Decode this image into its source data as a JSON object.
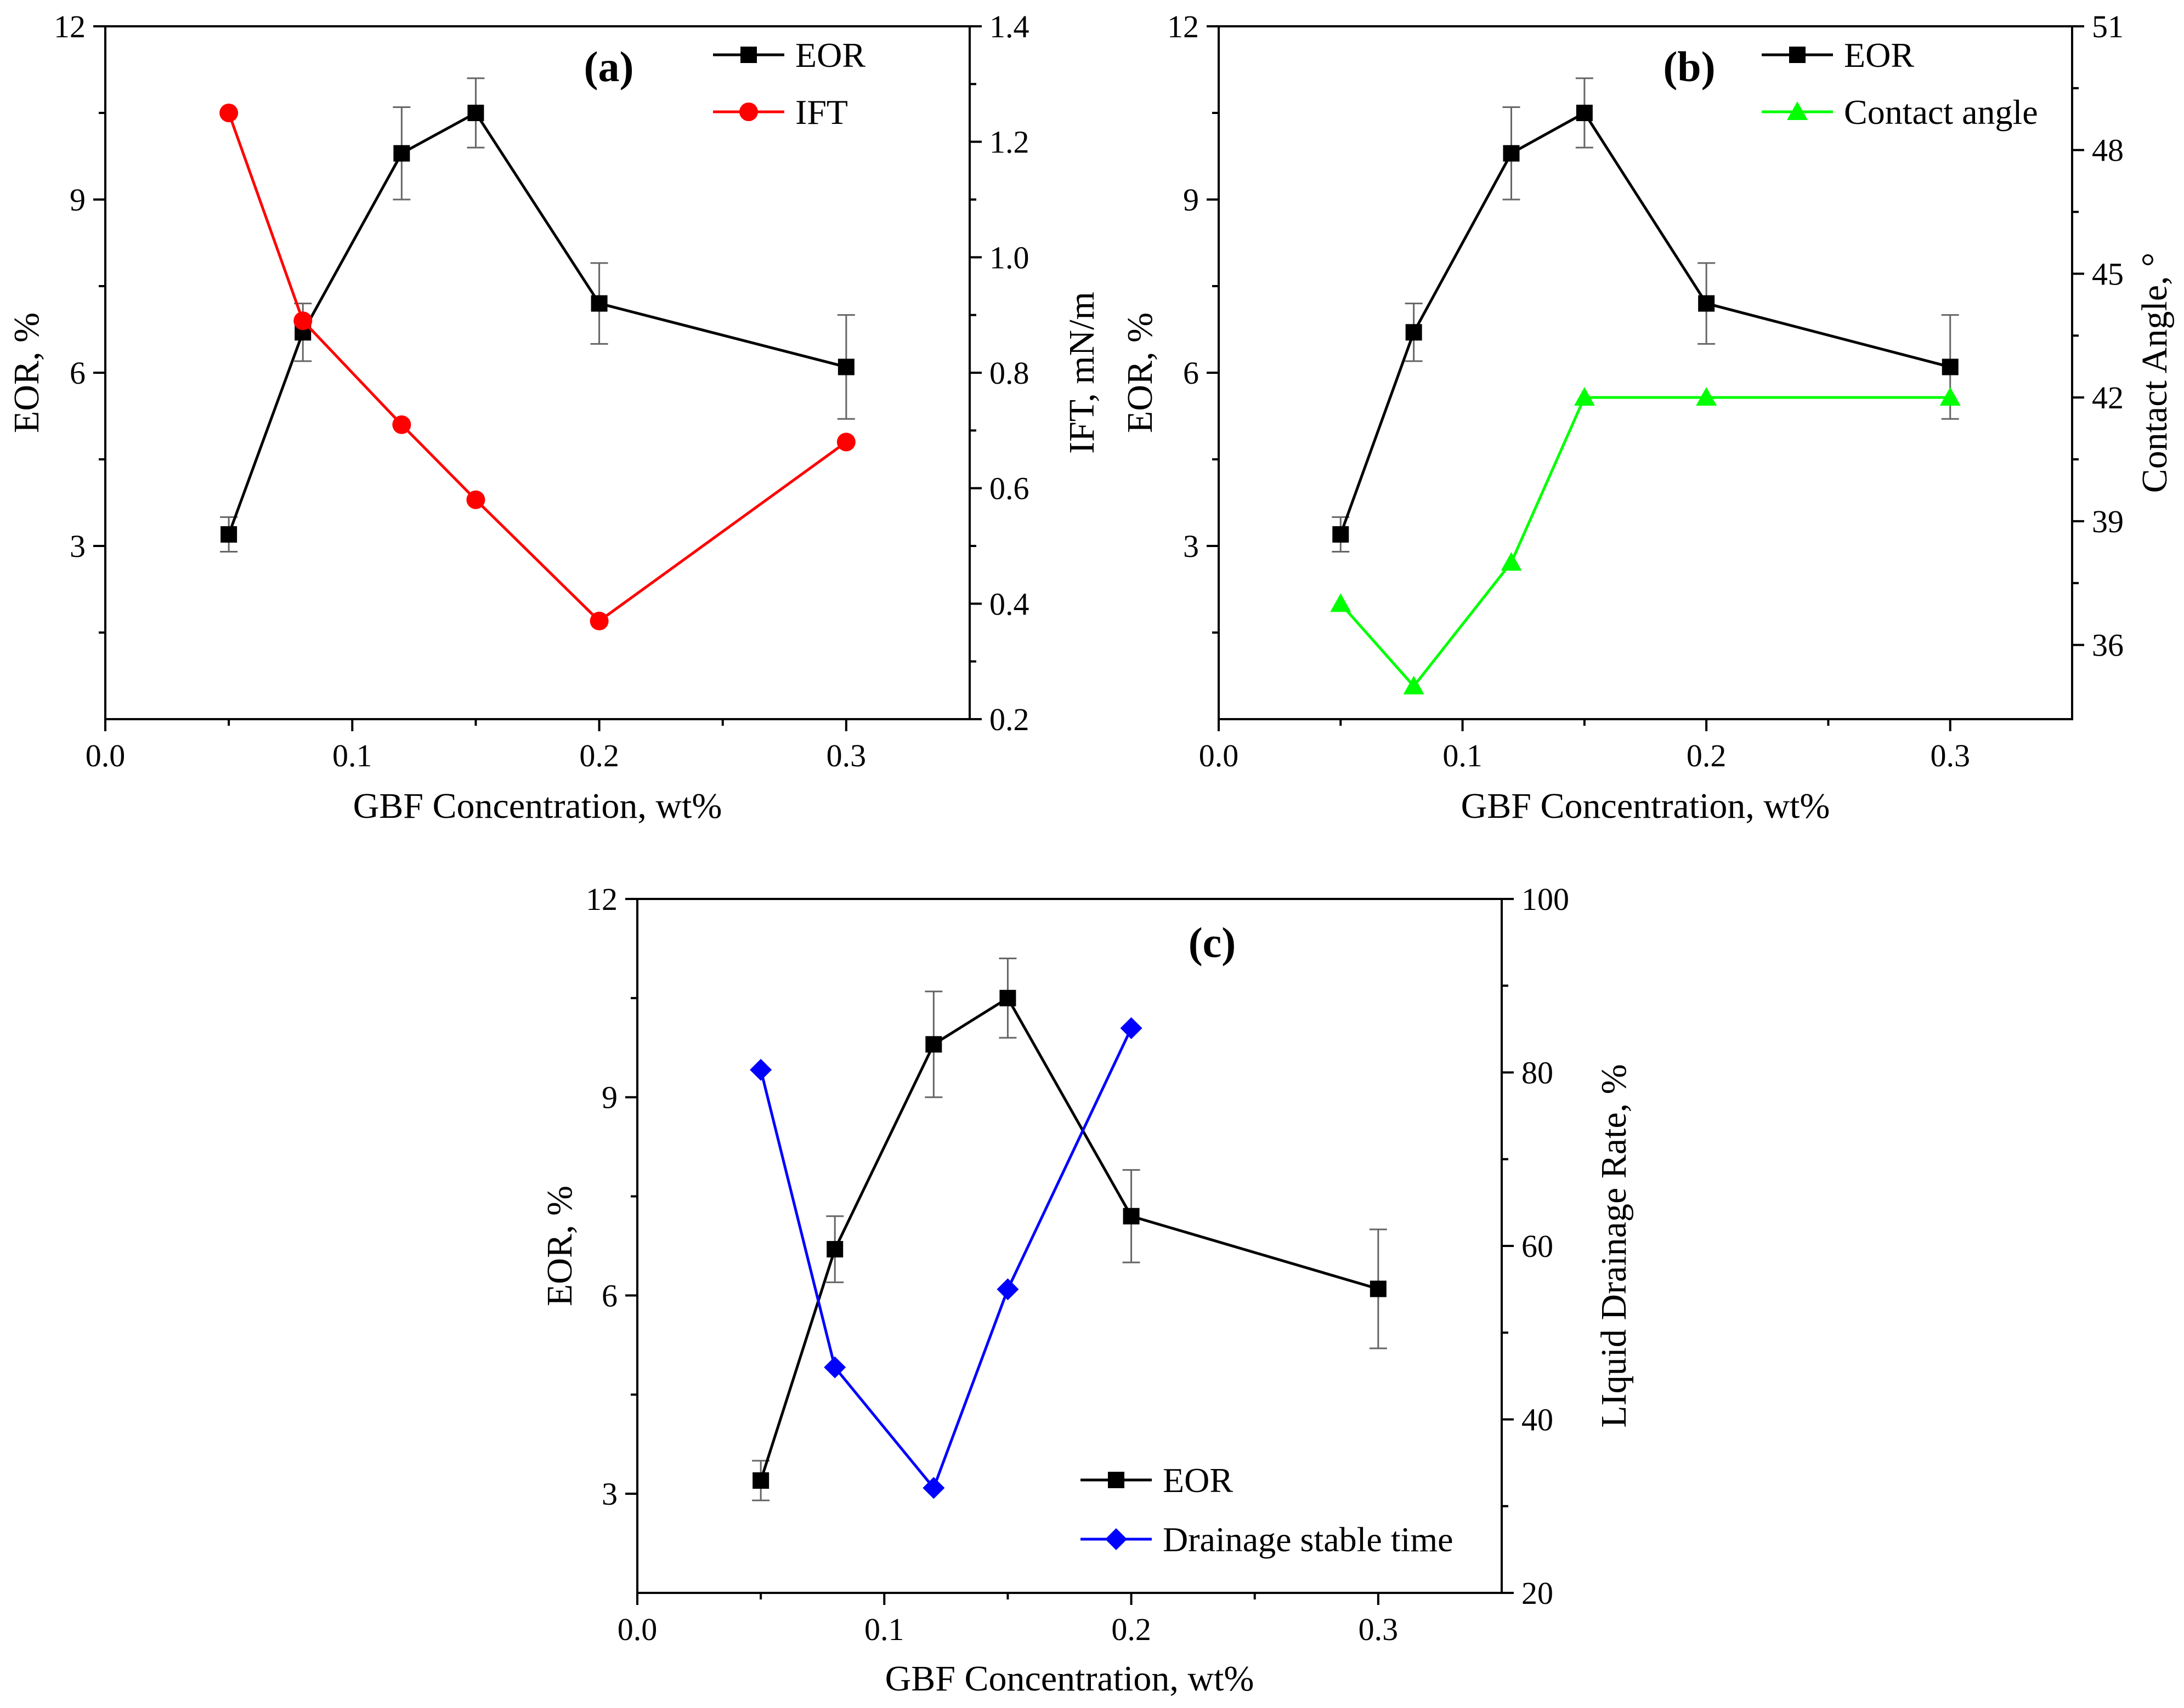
{
  "figure": {
    "colors": {
      "eor": "#000000",
      "ift": "#ff0000",
      "contact_angle": "#00ff00",
      "drainage": "#0000ff"
    }
  },
  "chart_data": [
    {
      "type": "line",
      "panel_label": "(a)",
      "xlabel": "GBF Concentration, wt%",
      "ylabel": "EOR, %",
      "y2label": "IFT, mN/m",
      "xlim": [
        0.0,
        0.35
      ],
      "ylim": [
        0,
        12
      ],
      "y2lim": [
        0.2,
        1.4
      ],
      "xticks": [
        0.0,
        0.1,
        0.2,
        0.3
      ],
      "xtick_labels": [
        "0.0",
        "0.1",
        "0.2",
        "0.3"
      ],
      "yticks": [
        3,
        6,
        9,
        12
      ],
      "ytick_labels": [
        "3",
        "6",
        "9",
        "12"
      ],
      "y2ticks": [
        0.2,
        0.4,
        0.6,
        0.8,
        1.0,
        1.2,
        1.4
      ],
      "y2tick_labels": [
        "0.2",
        "0.4",
        "0.6",
        "0.8",
        "1.0",
        "1.2",
        "1.4"
      ],
      "legend_position": "top-right",
      "series": [
        {
          "name": "EOR",
          "axis": "left",
          "marker": "square",
          "color": "#000000",
          "x": [
            0.05,
            0.08,
            0.12,
            0.15,
            0.2,
            0.3
          ],
          "values": [
            3.2,
            6.7,
            9.8,
            10.5,
            7.2,
            6.1
          ],
          "errors": [
            0.3,
            0.5,
            0.8,
            0.6,
            0.7,
            0.9
          ]
        },
        {
          "name": "IFT",
          "axis": "right",
          "marker": "circle",
          "color": "#ff0000",
          "x": [
            0.05,
            0.08,
            0.12,
            0.15,
            0.2,
            0.3
          ],
          "values": [
            1.25,
            0.89,
            0.71,
            0.58,
            0.37,
            0.68
          ]
        }
      ]
    },
    {
      "type": "line",
      "panel_label": "(b)",
      "xlabel": "GBF Concentration, wt%",
      "ylabel": "EOR, %",
      "y2label": "Contact Angle, °",
      "xlim": [
        0.0,
        0.35
      ],
      "ylim": [
        0,
        12
      ],
      "y2lim": [
        34.2,
        51
      ],
      "xticks": [
        0.0,
        0.1,
        0.2,
        0.3
      ],
      "xtick_labels": [
        "0.0",
        "0.1",
        "0.2",
        "0.3"
      ],
      "yticks": [
        3,
        6,
        9,
        12
      ],
      "ytick_labels": [
        "3",
        "6",
        "9",
        "12"
      ],
      "y2ticks": [
        36,
        39,
        42,
        45,
        48,
        51
      ],
      "y2tick_labels": [
        "36",
        "39",
        "42",
        "45",
        "48",
        "51"
      ],
      "legend_position": "top-right",
      "series": [
        {
          "name": "EOR",
          "axis": "left",
          "marker": "square",
          "color": "#000000",
          "x": [
            0.05,
            0.08,
            0.12,
            0.15,
            0.2,
            0.3
          ],
          "values": [
            3.2,
            6.7,
            9.8,
            10.5,
            7.2,
            6.1
          ],
          "errors": [
            0.3,
            0.5,
            0.8,
            0.6,
            0.7,
            0.9
          ]
        },
        {
          "name": "Contact angle",
          "axis": "right",
          "marker": "triangle",
          "color": "#00ff00",
          "x": [
            0.05,
            0.08,
            0.12,
            0.15,
            0.2,
            0.3
          ],
          "values": [
            37.0,
            35.0,
            38.0,
            42.0,
            42.0,
            42.0
          ]
        }
      ]
    },
    {
      "type": "line",
      "panel_label": "(c)",
      "xlabel": "GBF Concentration, wt%",
      "ylabel": "EOR, %",
      "y2label": "LIquid Drainage Rate, %",
      "xlim": [
        0.0,
        0.35
      ],
      "ylim": [
        1.5,
        12
      ],
      "y2lim": [
        20,
        100
      ],
      "xticks": [
        0.0,
        0.1,
        0.2,
        0.3
      ],
      "xtick_labels": [
        "0.0",
        "0.1",
        "0.2",
        "0.3"
      ],
      "yticks": [
        3,
        6,
        9,
        12
      ],
      "ytick_labels": [
        "3",
        "6",
        "9",
        "12"
      ],
      "y2ticks": [
        20,
        40,
        60,
        80,
        100
      ],
      "y2tick_labels": [
        "20",
        "40",
        "60",
        "80",
        "100"
      ],
      "legend_position": "bottom-right",
      "series": [
        {
          "name": "EOR",
          "axis": "left",
          "marker": "square",
          "color": "#000000",
          "x": [
            0.05,
            0.08,
            0.12,
            0.15,
            0.2,
            0.3
          ],
          "values": [
            3.2,
            6.7,
            9.8,
            10.5,
            7.2,
            6.1
          ],
          "errors": [
            0.3,
            0.5,
            0.8,
            0.6,
            0.7,
            0.9
          ]
        },
        {
          "name": "Drainage stable time",
          "axis": "right",
          "marker": "diamond",
          "color": "#0000ff",
          "x": [
            0.05,
            0.08,
            0.12,
            0.15,
            0.2
          ],
          "values": [
            80.3,
            46.0,
            32.1,
            55.0,
            85.1
          ]
        }
      ]
    }
  ]
}
